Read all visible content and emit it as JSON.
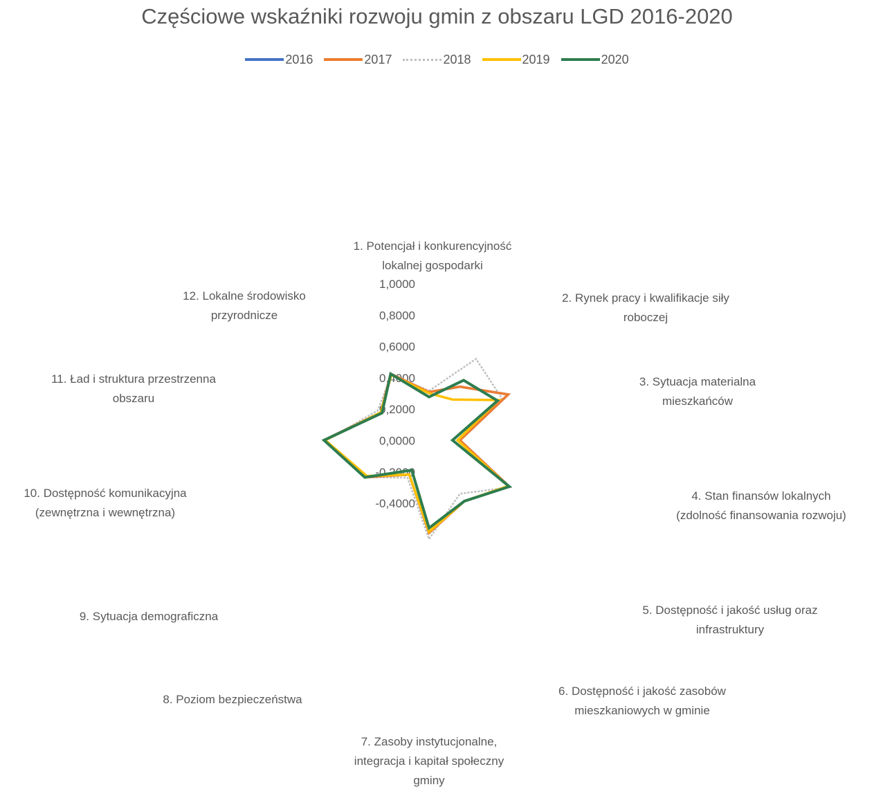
{
  "chart_data": {
    "type": "radar",
    "title": "Częściowe wskaźniki rozwoju gmin z obszaru LGD 2016-2020",
    "categories": [
      "1. Potencjał i konkurencyjność lokalnej gospodarki",
      "2. Rynek pracy i kwalifikacje siły roboczej",
      "3. Sytuacja materialna mieszkańców",
      "4. Stan finansów lokalnych (zdolność finansowania rozwoju)",
      "5. Dostępność i jakość usług oraz infrastruktury",
      "6. Dostępność i jakość zasobów mieszkaniowych w gminie",
      "7. Zasoby instytucjonalne, integracja i kapitał społeczny gminy",
      "8. Poziom bezpieczeństwa",
      "9. Sytuacja demograficzna",
      "10. Dostępność komunikacyjna (zewnętrzna i wewnętrzna)",
      "11. Ład i struktura przestrzenna obszaru",
      "12. Lokalne środowisko przyrodnicze"
    ],
    "category_lines": [
      [
        "1. Potencjał i konkurencyjność",
        "lokalnej gospodarki"
      ],
      [
        "2. Rynek pracy i kwalifikacje siły",
        "roboczej"
      ],
      [
        "3. Sytuacja materialna",
        "mieszkańców"
      ],
      [
        "4. Stan finansów lokalnych",
        "(zdolność finansowania rozwoju)"
      ],
      [
        "5. Dostępność i jakość usług oraz",
        "infrastruktury"
      ],
      [
        "6. Dostępność i jakość zasobów",
        "mieszkaniowych w gminie"
      ],
      [
        "7. Zasoby instytucjonalne,",
        "integracja i kapitał społeczny",
        "gminy"
      ],
      [
        "8. Poziom bezpieczeństwa"
      ],
      [
        "9. Sytuacja demograficzna"
      ],
      [
        "10. Dostępność komunikacyjna",
        "(zewnętrzna i wewnętrzna)"
      ],
      [
        "11. Ład i struktura przestrzenna",
        "obszaru"
      ],
      [
        "12. Lokalne środowisko",
        "przyrodnicze"
      ]
    ],
    "ticks": [
      "1,0000",
      "0,8000",
      "0,6000",
      "0,4000",
      "0,2000",
      "0,0000",
      "-0,2000",
      "-0,4000"
    ],
    "tick_values": [
      1.0,
      0.8,
      0.6,
      0.4,
      0.2,
      0.0,
      -0.2,
      -0.4
    ],
    "ylim": [
      -0.4,
      1.0
    ],
    "grid": false,
    "legend_position": "top",
    "series": [
      {
        "name": "2016",
        "color": "#4472c4",
        "style": "solid",
        "values": [
          -0.01,
          0.1,
          0.34,
          -0.15,
          0.35,
          0.17,
          0.35,
          -0.08,
          0.2,
          0.45,
          0.05,
          0.22
        ]
      },
      {
        "name": "2017",
        "color": "#ed7d31",
        "style": "solid",
        "values": [
          -0.01,
          0.1,
          0.34,
          -0.15,
          0.35,
          0.17,
          0.35,
          -0.08,
          0.2,
          0.45,
          0.05,
          0.22
        ]
      },
      {
        "name": "2018",
        "color": "#bfbfbf",
        "style": "dashed",
        "values": [
          0.0,
          0.36,
          0.28,
          -0.15,
          0.36,
          0.1,
          0.4,
          -0.05,
          0.2,
          0.43,
          0.08,
          0.21
        ]
      },
      {
        "name": "2019",
        "color": "#ffc000",
        "style": "solid",
        "values": [
          -0.02,
          -0.02,
          0.25,
          -0.17,
          0.34,
          0.17,
          0.34,
          -0.08,
          0.18,
          0.44,
          0.05,
          0.21
        ]
      },
      {
        "name": "2020",
        "color": "#2e7d4f",
        "style": "solid",
        "values": [
          -0.05,
          0.16,
          0.24,
          -0.21,
          0.35,
          0.17,
          0.31,
          -0.12,
          0.2,
          0.45,
          0.04,
          0.22
        ]
      }
    ]
  }
}
